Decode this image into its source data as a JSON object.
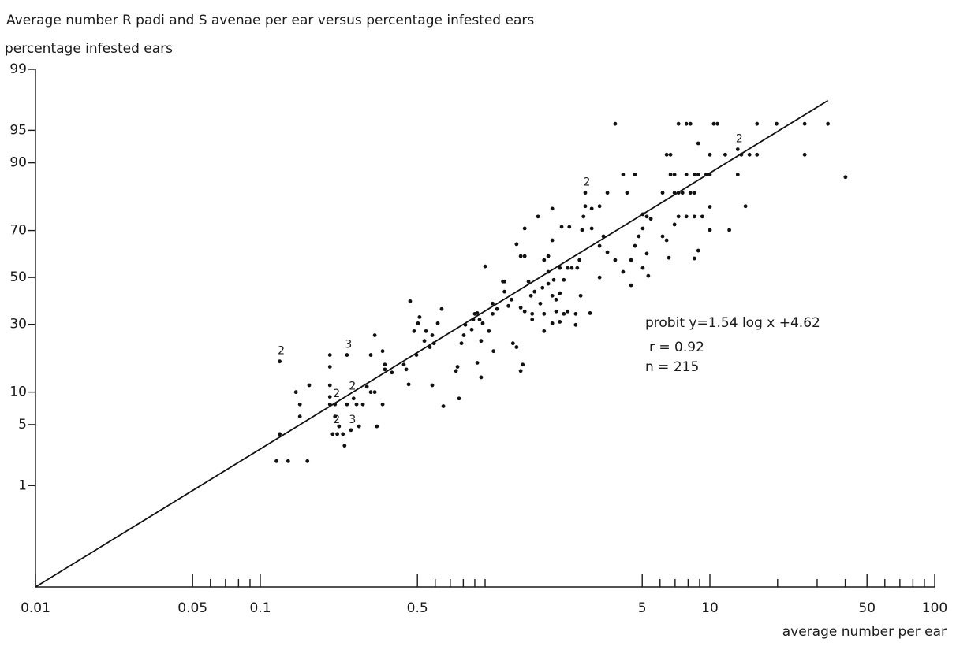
{
  "chart_data": {
    "type": "scatter",
    "title": "Average number R padi and S avenae per ear versus percentage infested ears",
    "y_label": "percentage infested ears",
    "x_label": "average number per ear",
    "annotations": [
      "probit y=1.54 log x +4.62",
      "r = 0.92",
      "n = 215"
    ],
    "xscale": "log",
    "yscale": "probit",
    "xlim": [
      0.01,
      100
    ],
    "ylim": [
      0.027,
      99
    ],
    "xticks": [
      0.01,
      0.05,
      0.1,
      0.5,
      5,
      10,
      50,
      100
    ],
    "x_minor_ticks": [
      0.06,
      0.07,
      0.08,
      0.09,
      0.6,
      0.7,
      0.8,
      0.9,
      1,
      6,
      7,
      8,
      9,
      20,
      30,
      40,
      60,
      70,
      80,
      90
    ],
    "yticks": [
      1,
      5,
      10,
      30,
      50,
      70,
      90,
      95,
      99
    ],
    "color": "#111111",
    "x": [
      0.122,
      0.122,
      0.118,
      0.133,
      0.144,
      0.15,
      0.15,
      0.162,
      0.165,
      0.204,
      0.204,
      0.204,
      0.204,
      0.204,
      0.215,
      0.21,
      0.22,
      0.224,
      0.233,
      0.237,
      0.243,
      0.243,
      0.253,
      0.275,
      0.215,
      0.323,
      0.35,
      0.358,
      0.358,
      0.385,
      0.323,
      0.35,
      0.31,
      0.298,
      0.286,
      0.33,
      0.268,
      0.26,
      0.31,
      0.435,
      0.446,
      0.457,
      0.495,
      0.483,
      0.503,
      0.511,
      0.464,
      0.546,
      0.537,
      0.568,
      0.582,
      0.592,
      0.582,
      0.652,
      0.616,
      0.641,
      0.742,
      0.754,
      0.766,
      0.785,
      0.804,
      0.817,
      0.872,
      0.886,
      0.9,
      0.923,
      0.945,
      0.976,
      1.0,
      0.96,
      0.923,
      0.96,
      1.04,
      1.09,
      1.08,
      1.08,
      1.13,
      1.22,
      1.2,
      1.22,
      1.31,
      1.27,
      1.44,
      1.5,
      1.33,
      1.38,
      1.44,
      1.47,
      1.62,
      1.83,
      1.56,
      1.6,
      1.76,
      1.83,
      1.62,
      1.66,
      1.5,
      1.44,
      1.38,
      1.5,
      1.72,
      1.99,
      2.19,
      2.37,
      1.99,
      1.91,
      1.91,
      1.83,
      2.15,
      2.24,
      2.33,
      2.43,
      2.57,
      1.8,
      1.91,
      1.99,
      2.07,
      2.15,
      2.02,
      2.07,
      2.24,
      2.33,
      1.99,
      2.15,
      2.53,
      2.66,
      2.53,
      3.79,
      7.25,
      7.86,
      8.19,
      10.4,
      10.8,
      16.2,
      19.8,
      26.4,
      33.5,
      6.42,
      6.68,
      8.88,
      10,
      11.7,
      13.3,
      13.8,
      15,
      16.2,
      26.4,
      40.1,
      6.68,
      6.96,
      7.86,
      8.53,
      8.88,
      9.63,
      10,
      13.3,
      4.11,
      4.64,
      6.16,
      6.96,
      7.25,
      7.55,
      8.19,
      8.53,
      3.5,
      4.28,
      2.79,
      14.4,
      10,
      9.25,
      7.25,
      7.86,
      8.53,
      10,
      12.2,
      2.98,
      3.23,
      2.79,
      5.03,
      5.24,
      5.46,
      5.03,
      6.16,
      6.42,
      6.96,
      4.83,
      4.64,
      5.24,
      4.46,
      5.03,
      6.57,
      8.53,
      8.88,
      4.11,
      4.46,
      5.32,
      2.93,
      2.7,
      2.63,
      3.23,
      2.98,
      3.36,
      3.5,
      3.79,
      3.23,
      2.74
    ],
    "values": [
      17.4,
      4.0,
      2.0,
      2.0,
      10.0,
      7.8,
      6.0,
      2.0,
      11.4,
      19.3,
      15.9,
      11.4,
      9.1,
      7.8,
      6.0,
      4.0,
      4.0,
      4.8,
      4.0,
      3.0,
      19.3,
      7.8,
      4.4,
      4.8,
      7.8,
      25.9,
      20.5,
      16.5,
      15.2,
      14.4,
      10.0,
      7.8,
      10.0,
      11.1,
      7.8,
      4.8,
      7.8,
      8.8,
      19.3,
      16.5,
      15.2,
      11.6,
      19.3,
      27.4,
      30.4,
      32.9,
      39.5,
      27.4,
      23.9,
      21.8,
      25.9,
      23.1,
      11.4,
      7.5,
      30.4,
      36.2,
      14.8,
      15.9,
      8.8,
      23.1,
      25.9,
      29.8,
      28.0,
      31.9,
      34.2,
      34.5,
      31.9,
      30.4,
      54.9,
      23.9,
      17.0,
      13.2,
      27.4,
      20.5,
      34.2,
      38.5,
      36.2,
      48.2,
      48.2,
      43.7,
      40.2,
      37.5,
      36.8,
      35.2,
      23.1,
      21.8,
      14.8,
      16.5,
      31.9,
      27.4,
      48.2,
      41.9,
      38.5,
      34.2,
      34.2,
      43.7,
      59.4,
      59.4,
      64.5,
      70.8,
      75.2,
      77.9,
      71.4,
      71.4,
      66.1,
      59.4,
      52.5,
      57.7,
      54.2,
      48.9,
      54.2,
      54.2,
      54.2,
      45.4,
      47.2,
      41.9,
      40.2,
      43.0,
      48.9,
      35.2,
      34.2,
      35.2,
      30.4,
      31.0,
      34.2,
      41.9,
      29.8,
      95.7,
      95.7,
      95.7,
      95.7,
      95.7,
      95.7,
      95.7,
      95.7,
      95.7,
      95.7,
      91.5,
      91.5,
      93.3,
      91.5,
      91.5,
      92.4,
      91.5,
      91.5,
      91.5,
      91.5,
      86.9,
      87.5,
      87.5,
      87.5,
      87.5,
      87.5,
      87.5,
      87.5,
      87.5,
      87.5,
      87.5,
      82.8,
      82.8,
      82.8,
      82.8,
      82.8,
      82.8,
      82.8,
      82.8,
      82.8,
      78.7,
      78.5,
      75.2,
      75.2,
      75.2,
      75.2,
      70.2,
      70.2,
      77.9,
      78.7,
      78.7,
      76.0,
      75.2,
      74.4,
      70.8,
      67.7,
      66.1,
      72.3,
      67.7,
      63.8,
      60.5,
      57.7,
      54.2,
      58.7,
      58.4,
      61.8,
      52.5,
      46.5,
      50.7,
      34.5,
      70.2,
      57.7,
      63.8,
      70.8,
      67.7,
      61.1,
      57.7,
      50.0,
      75.2
    ],
    "point_labels": [
      {
        "text": "2",
        "x": 0.122,
        "y": 17.4
      },
      {
        "text": "3",
        "x": 0.243,
        "y": 19.3
      },
      {
        "text": "2",
        "x": 0.215,
        "y": 7.8
      },
      {
        "text": "2",
        "x": 0.253,
        "y": 9.1
      },
      {
        "text": "2",
        "x": 0.215,
        "y": 4.4
      },
      {
        "text": "3",
        "x": 0.253,
        "y": 4.4
      },
      {
        "text": "2",
        "x": 2.79,
        "y": 82.8
      },
      {
        "text": "2",
        "x": 13.3,
        "y": 92.4
      }
    ],
    "fit": {
      "x": [
        0.01,
        33.5
      ],
      "values": [
        0.027,
        97.6
      ]
    }
  }
}
